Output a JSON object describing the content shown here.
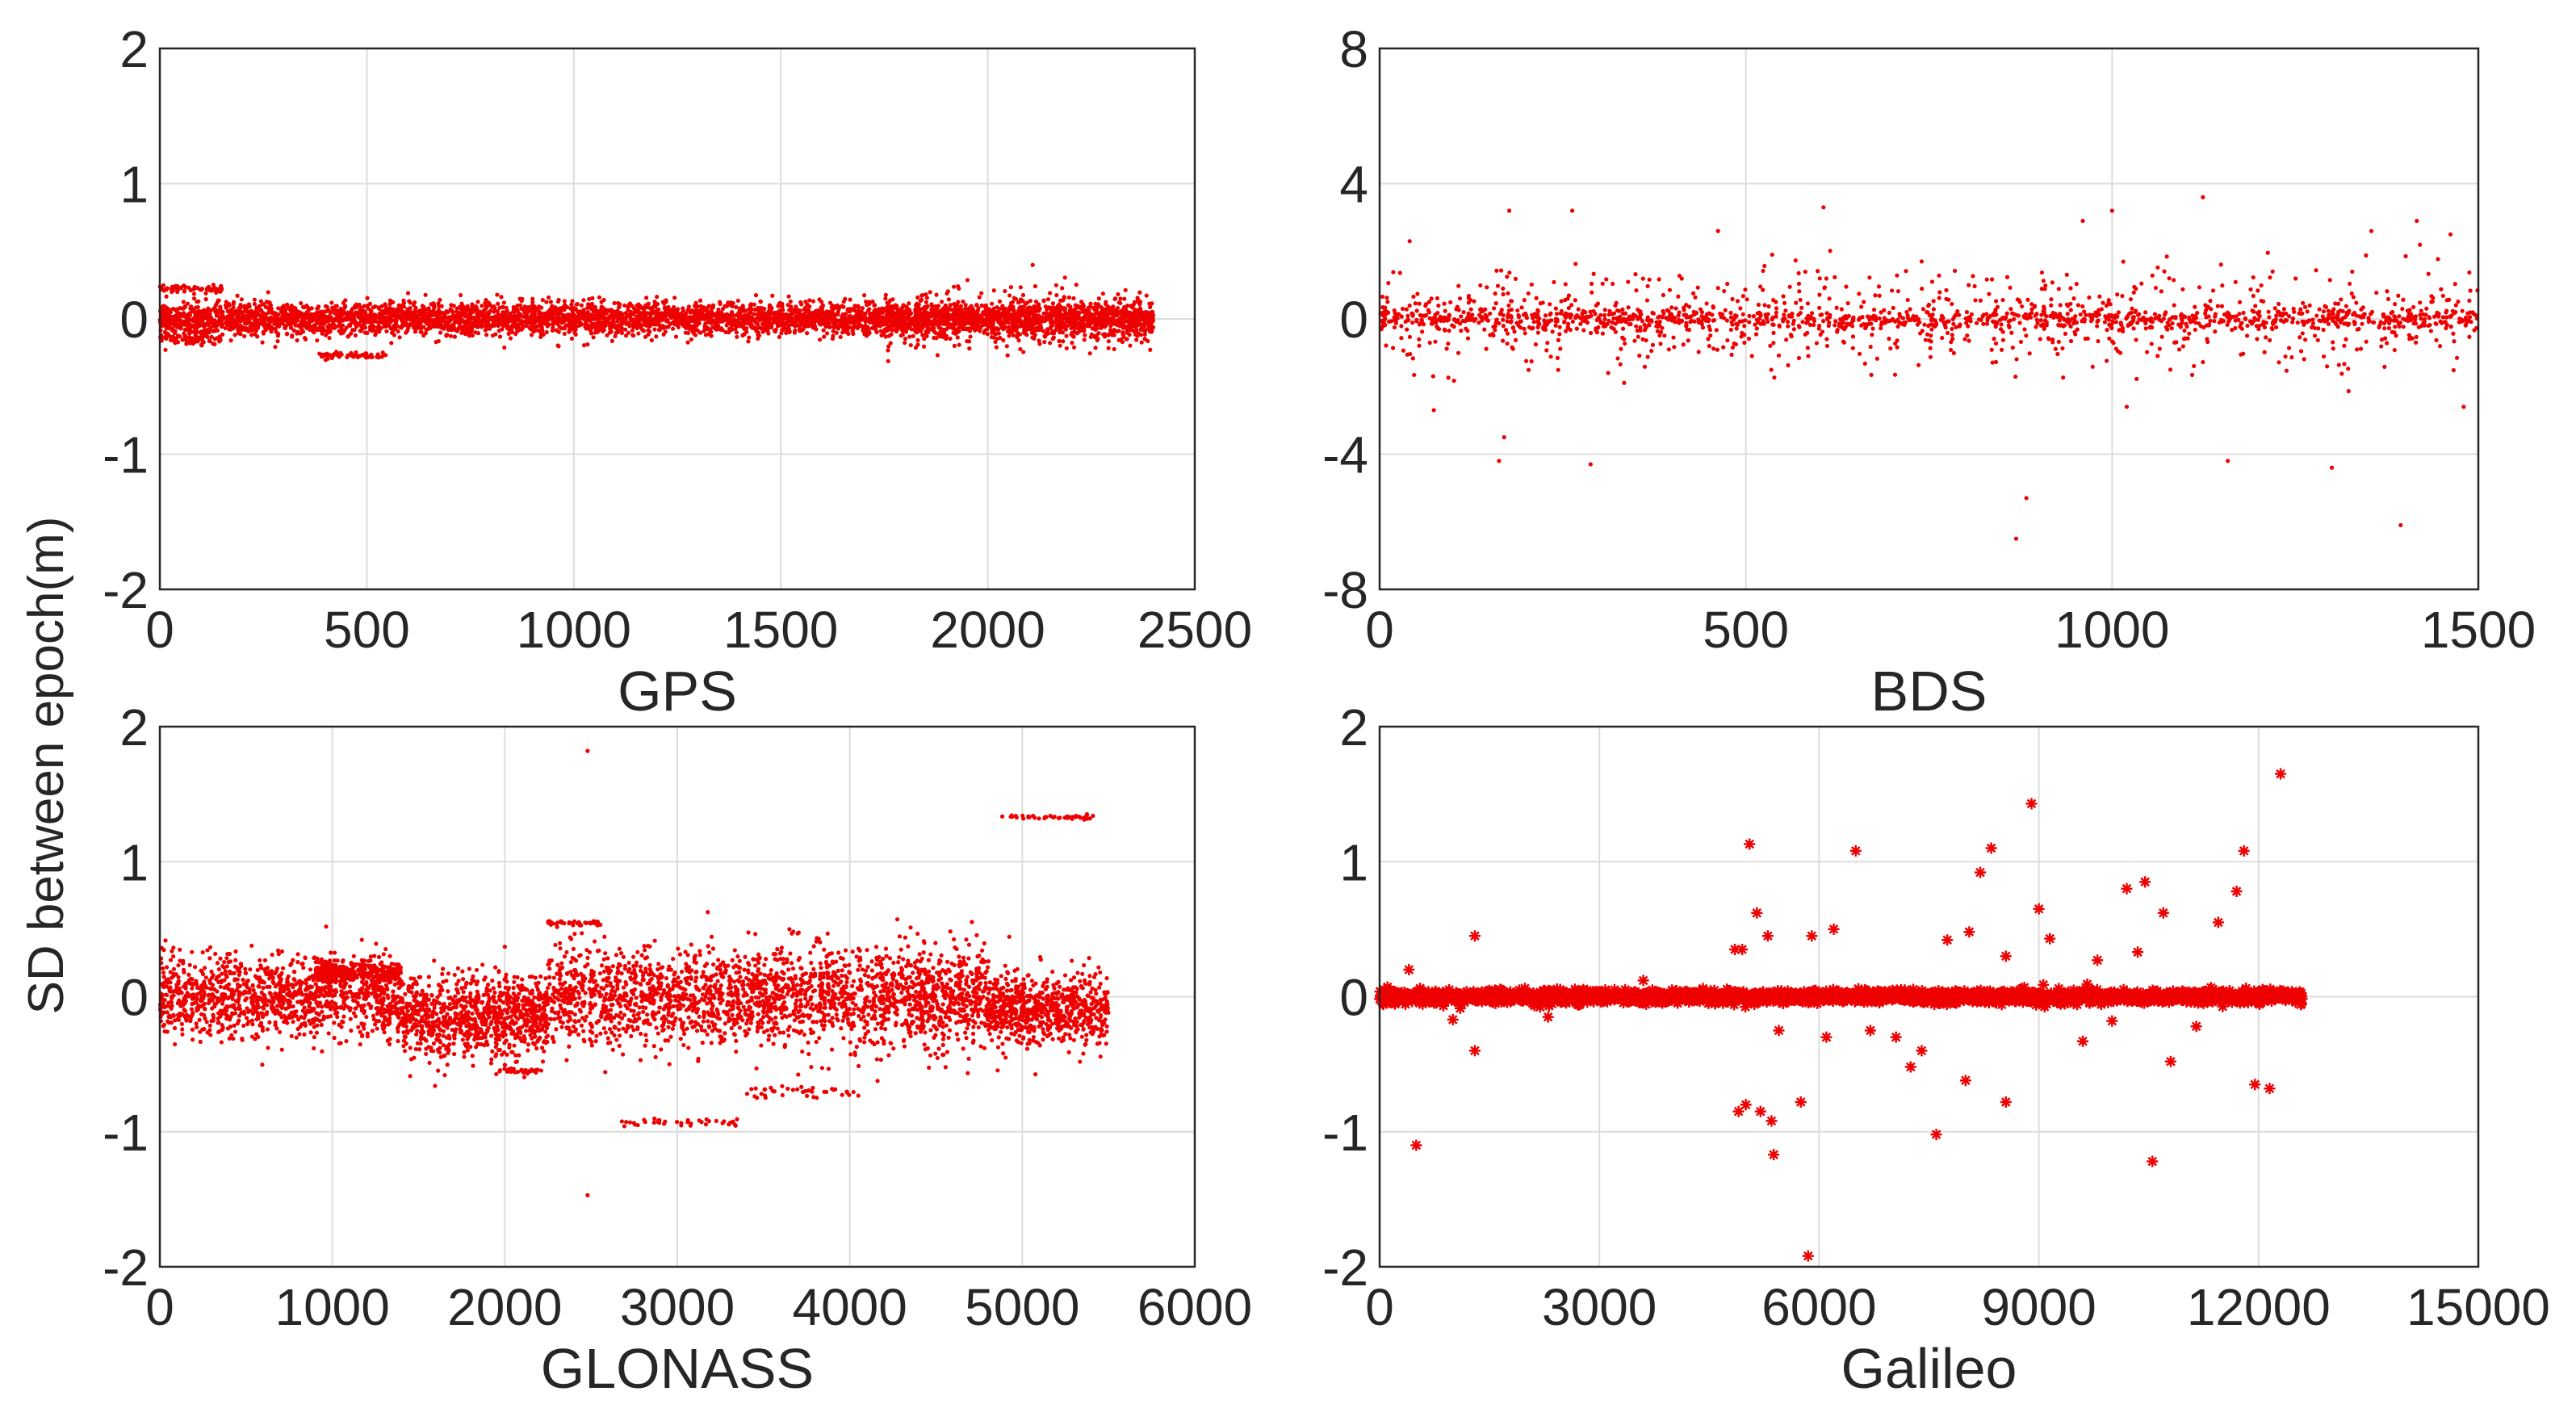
{
  "figure": {
    "ylabel": "SD between epoch(m)"
  },
  "chart_data": [
    {
      "type": "scatter",
      "name": "GPS",
      "xlabel": "GPS",
      "xlim": [
        0,
        2500
      ],
      "ylim": [
        -2,
        2
      ],
      "xticks": [
        0,
        500,
        1000,
        1500,
        2000,
        2500
      ],
      "yticks": [
        -2,
        -1,
        0,
        1,
        2
      ],
      "marker": "dot",
      "color": "#ee0000",
      "n_points_approx": 2400,
      "x_extent": [
        0,
        2400
      ],
      "bands": [
        {
          "x": [
            0,
            2400
          ],
          "center": 0.0,
          "spread": 0.1,
          "count": 4800
        },
        {
          "x": [
            0,
            150
          ],
          "center": 0.22,
          "spread": 0.03,
          "count": 60
        },
        {
          "x": [
            0,
            150
          ],
          "center": -0.15,
          "spread": 0.04,
          "count": 60
        },
        {
          "x": [
            370,
            560
          ],
          "center": -0.27,
          "spread": 0.02,
          "count": 60
        },
        {
          "x": [
            1750,
            2400
          ],
          "center": 0.0,
          "spread": 0.18,
          "count": 500
        }
      ],
      "outliers": []
    },
    {
      "type": "scatter",
      "name": "BDS",
      "xlabel": "BDS",
      "xlim": [
        0,
        1500
      ],
      "ylim": [
        -8,
        8
      ],
      "xticks": [
        0,
        500,
        1000,
        1500
      ],
      "yticks": [
        -8,
        -4,
        0,
        4,
        8
      ],
      "marker": "dot",
      "color": "#ee0000",
      "n_points_approx": 1500,
      "x_extent": [
        0,
        1500
      ],
      "bands": [
        {
          "x": [
            0,
            1500
          ],
          "center": 0.0,
          "spread": 0.25,
          "count": 900
        },
        {
          "x": [
            0,
            1500
          ],
          "center": 0.0,
          "spread": 1.2,
          "count": 900
        }
      ],
      "outliers": [
        [
          41,
          2.3
        ],
        [
          74,
          -2.7
        ],
        [
          163,
          -4.2
        ],
        [
          170,
          -3.5
        ],
        [
          177,
          3.2
        ],
        [
          263,
          3.2
        ],
        [
          288,
          -4.3
        ],
        [
          462,
          2.6
        ],
        [
          536,
          1.9
        ],
        [
          606,
          3.3
        ],
        [
          883,
          -5.3
        ],
        [
          869,
          -6.5
        ],
        [
          1000,
          3.2
        ],
        [
          1124,
          3.6
        ],
        [
          1158,
          -4.2
        ],
        [
          1300,
          -4.4
        ],
        [
          1394,
          -6.1
        ],
        [
          1354,
          2.6
        ],
        [
          1416,
          2.9
        ],
        [
          1462,
          2.5
        ],
        [
          1480,
          -2.6
        ],
        [
          740,
          1.7
        ],
        [
          960,
          2.9
        ],
        [
          1020,
          -2.6
        ]
      ]
    },
    {
      "type": "scatter",
      "name": "GLONASS",
      "xlabel": "GLONASS",
      "xlim": [
        0,
        6000
      ],
      "ylim": [
        -2,
        2
      ],
      "xticks": [
        0,
        1000,
        2000,
        3000,
        4000,
        5000,
        6000
      ],
      "yticks": [
        -2,
        -1,
        0,
        1,
        2
      ],
      "marker": "dot",
      "color": "#ee0000",
      "n_points_approx": 5500,
      "x_extent": [
        0,
        5500
      ],
      "bands": [
        {
          "x": [
            0,
            1400
          ],
          "center": 0.0,
          "spread": 0.25,
          "count": 1200
        },
        {
          "x": [
            900,
            1400
          ],
          "center": 0.18,
          "spread": 0.06,
          "count": 300
        },
        {
          "x": [
            1400,
            2250
          ],
          "center": -0.15,
          "spread": 0.25,
          "count": 900
        },
        {
          "x": [
            2250,
            4800
          ],
          "center": 0.0,
          "spread": 0.3,
          "count": 2200
        },
        {
          "x": [
            4800,
            5500
          ],
          "center": -0.1,
          "spread": 0.22,
          "count": 700
        },
        {
          "x": [
            2250,
            2550
          ],
          "center": 0.55,
          "spread": 0.02,
          "count": 40
        },
        {
          "x": [
            2650,
            3350
          ],
          "center": -0.93,
          "spread": 0.02,
          "count": 40
        },
        {
          "x": [
            4880,
            5460
          ],
          "center": 1.33,
          "spread": 0.015,
          "count": 40
        },
        {
          "x": [
            3400,
            4050
          ],
          "center": -0.7,
          "spread": 0.04,
          "count": 40
        },
        {
          "x": [
            1950,
            2250
          ],
          "center": -0.55,
          "spread": 0.02,
          "count": 30
        }
      ],
      "outliers": [
        [
          2480,
          1.82
        ],
        [
          2480,
          -1.47
        ],
        [
          3650,
          0.5
        ],
        [
          2000,
          0.37
        ]
      ]
    },
    {
      "type": "scatter",
      "name": "Galileo",
      "xlabel": "Galileo",
      "xlim": [
        0,
        15000
      ],
      "ylim": [
        -2,
        2
      ],
      "xticks": [
        0,
        3000,
        6000,
        9000,
        12000,
        15000
      ],
      "yticks": [
        -2,
        -1,
        0,
        1,
        2
      ],
      "marker": "star",
      "color": "#ee0000",
      "n_points_approx": 12600,
      "x_extent": [
        0,
        12600
      ],
      "bands": [
        {
          "x": [
            0,
            12600
          ],
          "center": 0.0,
          "spread": 0.04,
          "count": 2600
        }
      ],
      "outliers": [
        [
          400,
          0.2
        ],
        [
          500,
          -1.1
        ],
        [
          1300,
          0.45
        ],
        [
          1300,
          -0.4
        ],
        [
          1000,
          -0.17
        ],
        [
          4850,
          0.35
        ],
        [
          4950,
          0.35
        ],
        [
          4900,
          -0.85
        ],
        [
          5000,
          -0.8
        ],
        [
          5050,
          1.13
        ],
        [
          5150,
          0.62
        ],
        [
          5200,
          -0.85
        ],
        [
          5350,
          -0.92
        ],
        [
          5380,
          -1.17
        ],
        [
          5300,
          0.45
        ],
        [
          5450,
          -0.25
        ],
        [
          5750,
          -0.78
        ],
        [
          5900,
          0.45
        ],
        [
          5850,
          -1.92
        ],
        [
          6100,
          -0.3
        ],
        [
          6200,
          0.5
        ],
        [
          6500,
          1.08
        ],
        [
          6700,
          -0.25
        ],
        [
          7050,
          -0.3
        ],
        [
          7250,
          -0.52
        ],
        [
          7400,
          -0.4
        ],
        [
          7600,
          -1.02
        ],
        [
          7750,
          0.42
        ],
        [
          8000,
          -0.62
        ],
        [
          8050,
          0.48
        ],
        [
          8200,
          0.92
        ],
        [
          8350,
          1.1
        ],
        [
          8550,
          -0.78
        ],
        [
          8550,
          0.3
        ],
        [
          8900,
          1.43
        ],
        [
          9000,
          0.65
        ],
        [
          9150,
          0.43
        ],
        [
          9600,
          -0.33
        ],
        [
          9800,
          0.27
        ],
        [
          10200,
          0.8
        ],
        [
          10350,
          0.33
        ],
        [
          10450,
          0.85
        ],
        [
          10550,
          -1.22
        ],
        [
          10700,
          0.62
        ],
        [
          10800,
          -0.48
        ],
        [
          11150,
          -0.22
        ],
        [
          11450,
          0.55
        ],
        [
          11700,
          0.78
        ],
        [
          11800,
          1.08
        ],
        [
          11950,
          -0.65
        ],
        [
          12150,
          -0.68
        ],
        [
          12300,
          1.65
        ],
        [
          2300,
          -0.15
        ],
        [
          3600,
          0.12
        ],
        [
          10000,
          -0.18
        ]
      ]
    }
  ]
}
